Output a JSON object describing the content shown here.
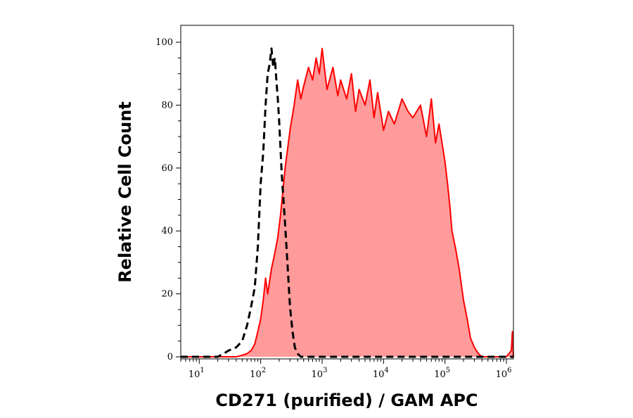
{
  "chart_data": {
    "type": "area",
    "xlabel": "CD271 (purified) / GAM APC",
    "ylabel": "Relative Cell Count",
    "xscale": "log",
    "xlim": [
      5,
      1300000
    ],
    "ylim": [
      0,
      103
    ],
    "y_ticks": [
      0,
      20,
      40,
      60,
      80,
      100
    ],
    "x_ticks": [
      {
        "value": 10,
        "base": "10",
        "exp": "1"
      },
      {
        "value": 100,
        "base": "10",
        "exp": "2"
      },
      {
        "value": 1000,
        "base": "10",
        "exp": "3"
      },
      {
        "value": 10000,
        "base": "10",
        "exp": "4"
      },
      {
        "value": 100000,
        "base": "10",
        "exp": "5"
      },
      {
        "value": 1000000,
        "base": "10",
        "exp": "6"
      }
    ],
    "grid": false,
    "legend": "none",
    "series": [
      {
        "style": "solid-filled",
        "line_color": "#ff0000",
        "fill_color": "#ff9b9b",
        "x": [
          5,
          20,
          30,
          40,
          50,
          60,
          70,
          80,
          90,
          100,
          110,
          120,
          130,
          150,
          170,
          190,
          210,
          250,
          300,
          350,
          400,
          450,
          500,
          600,
          700,
          800,
          900,
          1000,
          1200,
          1500,
          1800,
          2000,
          2500,
          3000,
          3500,
          4000,
          5000,
          6000,
          7000,
          8000,
          10000,
          12000,
          15000,
          20000,
          25000,
          30000,
          40000,
          50000,
          60000,
          70000,
          80000,
          100000,
          110000,
          120000,
          130000,
          150000,
          170000,
          200000,
          230000,
          260000,
          300000,
          350000,
          400000,
          500000,
          600000,
          700000,
          800000,
          1000000,
          1100000,
          1200000,
          1250000,
          1300000
        ],
        "y": [
          0,
          0,
          0,
          0,
          0.5,
          1,
          2,
          4,
          8,
          12,
          18,
          25,
          20,
          28,
          33,
          38,
          45,
          60,
          72,
          80,
          88,
          82,
          86,
          92,
          88,
          95,
          90,
          98,
          85,
          92,
          83,
          88,
          82,
          90,
          78,
          85,
          80,
          88,
          76,
          84,
          72,
          78,
          74,
          82,
          78,
          76,
          80,
          70,
          82,
          68,
          74,
          62,
          55,
          48,
          40,
          34,
          28,
          18,
          12,
          6,
          3,
          1,
          0,
          0,
          0,
          0,
          0,
          0,
          1,
          2,
          8,
          0
        ]
      },
      {
        "style": "dashed",
        "line_color": "#000000",
        "x": [
          5,
          20,
          25,
          30,
          40,
          50,
          60,
          70,
          80,
          90,
          100,
          110,
          120,
          130,
          140,
          150,
          160,
          170,
          180,
          190,
          200,
          220,
          250,
          280,
          300,
          330,
          360,
          400,
          450,
          500,
          600,
          700,
          1300000
        ],
        "y": [
          0,
          0,
          1,
          2,
          3,
          5,
          10,
          16,
          22,
          35,
          55,
          65,
          80,
          90,
          93,
          98,
          92,
          95,
          88,
          82,
          75,
          58,
          42,
          26,
          16,
          8,
          3,
          1,
          0,
          0,
          0,
          0,
          0
        ]
      }
    ]
  }
}
